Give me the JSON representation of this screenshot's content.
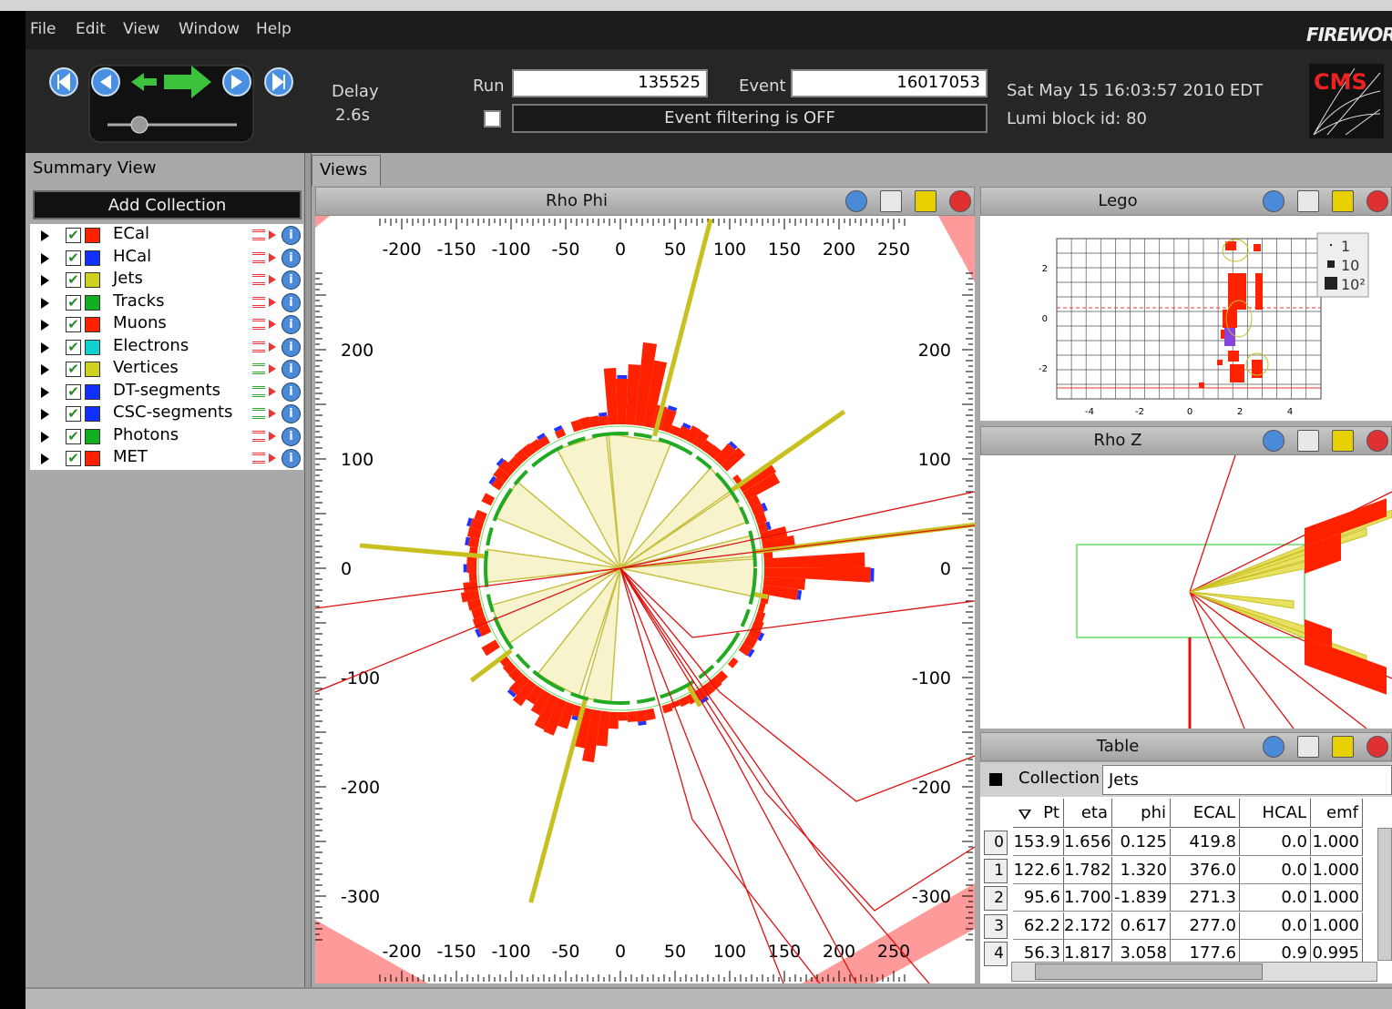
{
  "menu": [
    "File",
    "Edit",
    "View",
    "Window",
    "Help"
  ],
  "logo": "FIREWORKS",
  "toolbar": {
    "delay_label": "Delay",
    "delay": "2.6s",
    "run_label": "Run",
    "run": "135525",
    "event_label": "Event",
    "event": "16017053",
    "filter": "Event filtering is OFF",
    "time": "Sat May 15 16:03:57 2010 EDT",
    "lumi": "Lumi block id: 80",
    "experiment": "CMS"
  },
  "summary": {
    "title": "Summary View",
    "add_button": "Add Collection",
    "collections": [
      {
        "name": "ECal",
        "color": "#ff2200"
      },
      {
        "name": "HCal",
        "color": "#1030ff"
      },
      {
        "name": "Jets",
        "color": "#d0d020"
      },
      {
        "name": "Tracks",
        "color": "#10b020"
      },
      {
        "name": "Muons",
        "color": "#ff2200"
      },
      {
        "name": "Electrons",
        "color": "#10d0d0"
      },
      {
        "name": "Vertices",
        "color": "#d0d020"
      },
      {
        "name": "DT-segments",
        "color": "#1030ff"
      },
      {
        "name": "CSC-segments",
        "color": "#1030ff"
      },
      {
        "name": "Photons",
        "color": "#10b020"
      },
      {
        "name": "MET",
        "color": "#ff2200"
      }
    ]
  },
  "views": {
    "tab": "Views",
    "rho_phi": {
      "title": "Rho Phi",
      "x_ticks": [
        "-200",
        "-150",
        "-100",
        "-50",
        "0",
        "50",
        "100",
        "150",
        "200",
        "250"
      ],
      "y_ticks": [
        "200",
        "100",
        "0",
        "-100",
        "-200",
        "-300"
      ]
    },
    "lego": {
      "title": "Lego",
      "y_ticks": [
        "2",
        "0",
        "-2"
      ],
      "x_ticks": [
        "-4",
        "-2",
        "0",
        "2",
        "4"
      ],
      "legend": [
        "1",
        "10",
        "10²"
      ]
    },
    "rho_z": {
      "title": "Rho Z"
    },
    "table": {
      "title": "Table",
      "collection_label": "Collection",
      "collection": "Jets",
      "columns": [
        "Pt",
        "eta",
        "phi",
        "ECAL",
        "HCAL",
        "emf"
      ],
      "rows": [
        {
          "index": "0",
          "cells": [
            "153.9",
            "1.656",
            "0.125",
            "419.8",
            "0.0",
            "1.000"
          ]
        },
        {
          "index": "1",
          "cells": [
            "122.6",
            "1.782",
            "1.320",
            "376.0",
            "0.0",
            "1.000"
          ]
        },
        {
          "index": "2",
          "cells": [
            "95.6",
            "1.700",
            "-1.839",
            "271.3",
            "0.0",
            "1.000"
          ]
        },
        {
          "index": "3",
          "cells": [
            "62.2",
            "2.172",
            "0.617",
            "277.0",
            "0.0",
            "1.000"
          ]
        },
        {
          "index": "4",
          "cells": [
            "56.3",
            "1.817",
            "3.058",
            "177.6",
            "0.9",
            "0.995"
          ]
        }
      ]
    }
  }
}
